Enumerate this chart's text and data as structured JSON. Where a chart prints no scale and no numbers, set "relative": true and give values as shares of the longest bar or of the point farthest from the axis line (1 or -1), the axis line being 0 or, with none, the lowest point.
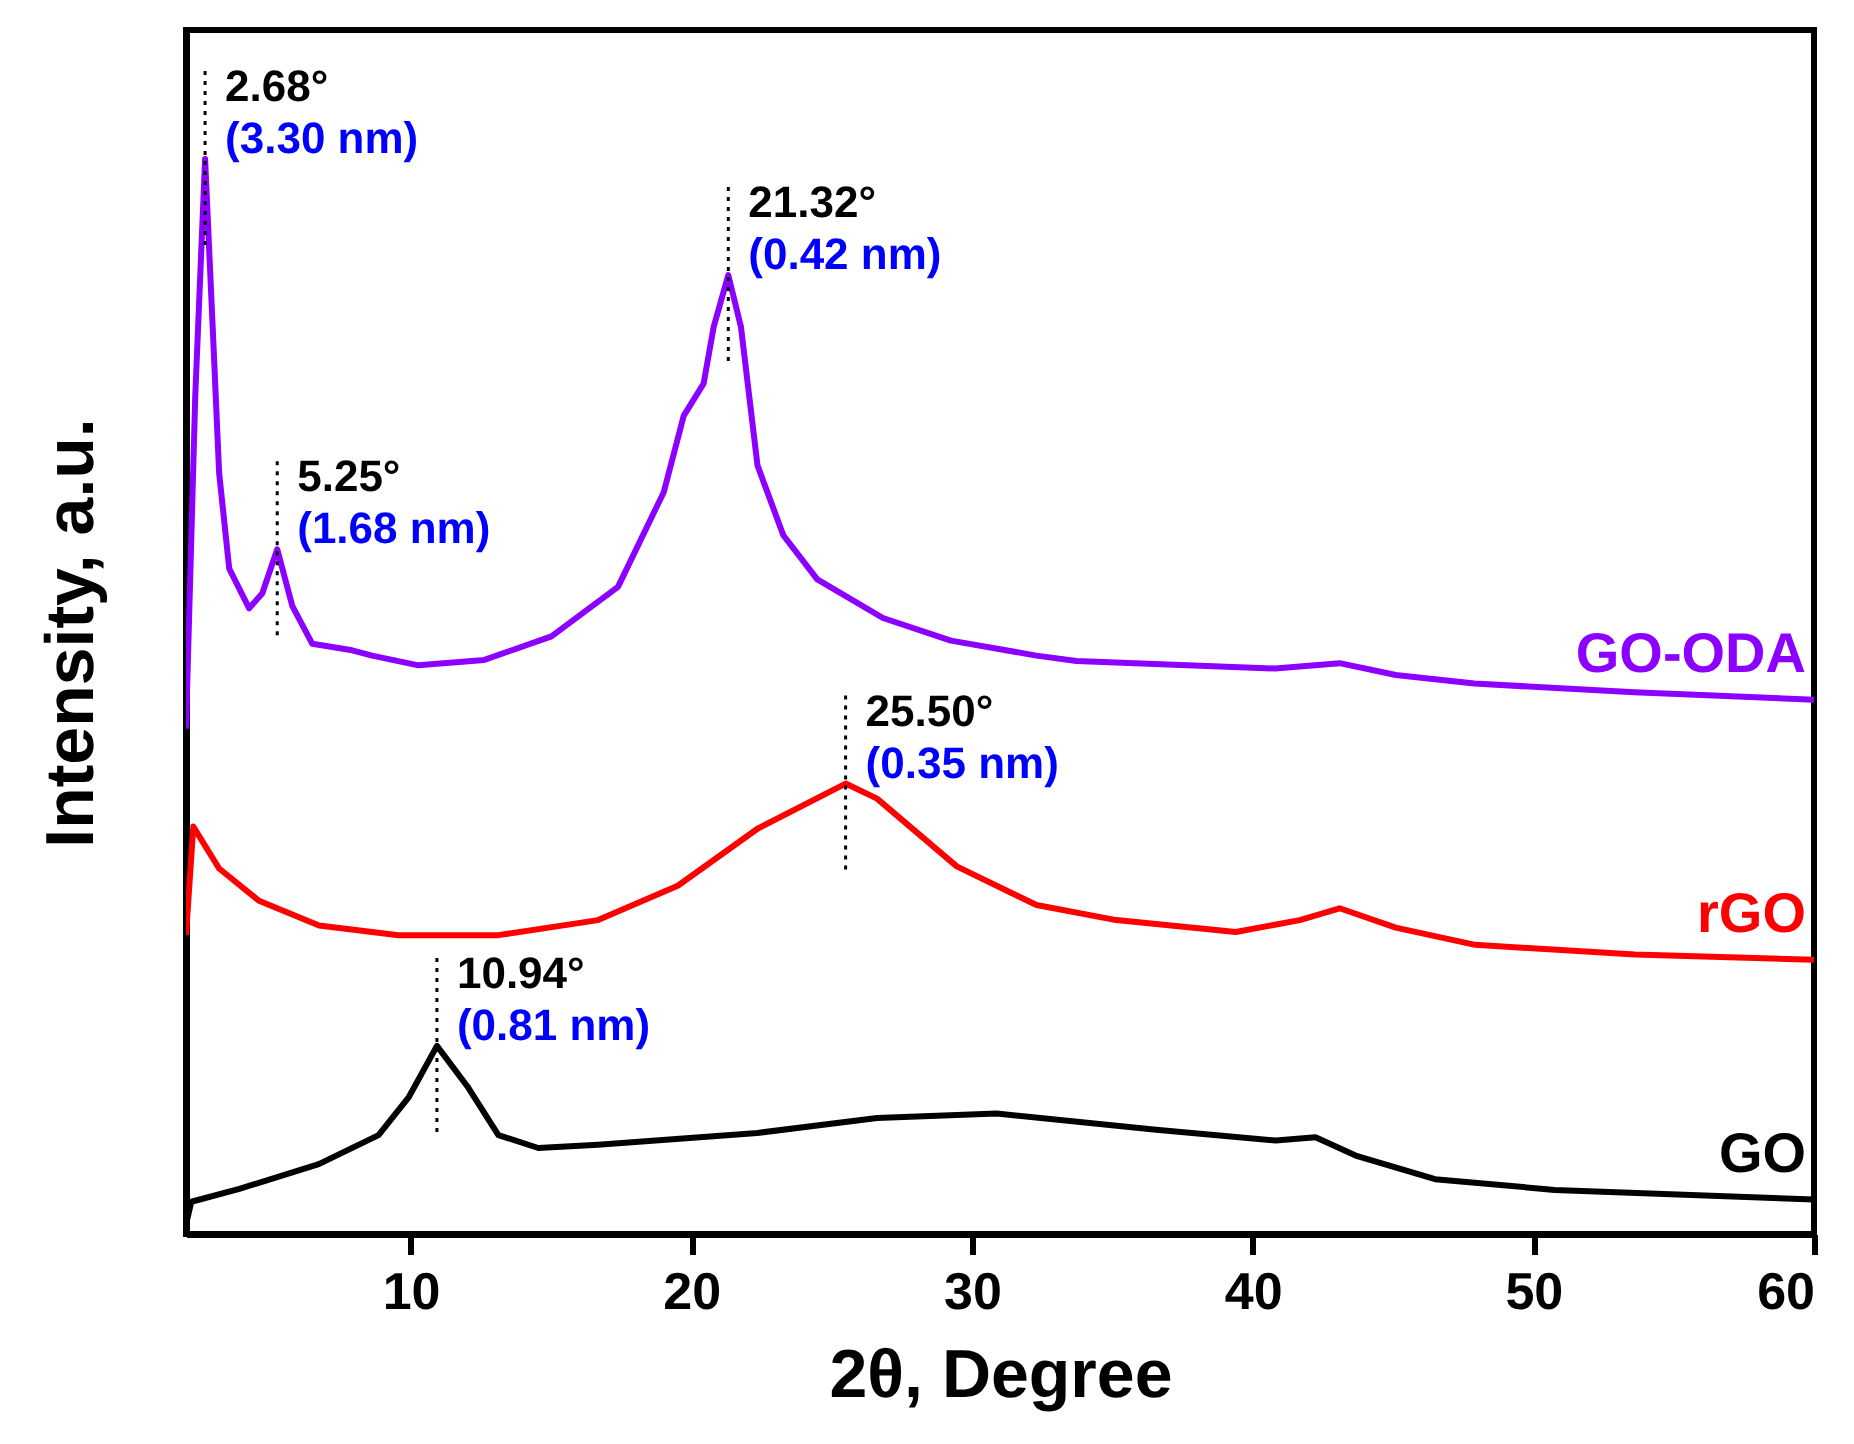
{
  "chart_data": {
    "type": "line",
    "relative": true,
    "xlabel": "2θ, Degree",
    "ylabel": "Intensity, a.u.",
    "xlim": [
      2,
      60
    ],
    "xticks": [
      10,
      20,
      30,
      40,
      50,
      60
    ],
    "grid": false,
    "marker": "none",
    "line_style": "solid",
    "series": [
      {
        "name": "GO-ODA",
        "color": "#8c00ff",
        "x": [
          2.0,
          2.33,
          2.68,
          2.95,
          3.18,
          3.54,
          4.25,
          4.72,
          5.25,
          5.79,
          6.5,
          7.92,
          8.63,
          10.28,
          12.63,
          15.02,
          17.39,
          19.02,
          19.73,
          20.44,
          20.8,
          21.32,
          21.77,
          22.36,
          23.28,
          24.49,
          26.83,
          29.25,
          32.3,
          33.72,
          40.8,
          43.1,
          45.1,
          47.9,
          53.6,
          60
        ],
        "values": [
          0.47,
          0.78,
          1.0,
          0.844,
          0.708,
          0.619,
          0.582,
          0.596,
          0.637,
          0.584,
          0.549,
          0.543,
          0.538,
          0.529,
          0.534,
          0.556,
          0.602,
          0.69,
          0.761,
          0.791,
          0.844,
          0.892,
          0.844,
          0.715,
          0.65,
          0.609,
          0.573,
          0.552,
          0.538,
          0.533,
          0.526,
          0.531,
          0.52,
          0.512,
          0.504,
          0.497
        ]
      },
      {
        "name": "rGO",
        "color": "#ff0000",
        "x": [
          2.0,
          2.26,
          3.18,
          4.6,
          6.74,
          9.57,
          13.13,
          16.68,
          19.52,
          22.36,
          25.5,
          26.62,
          29.46,
          32.3,
          35.14,
          39.4,
          41.68,
          43.1,
          45.1,
          47.93,
          53.62,
          60
        ],
        "values": [
          0.278,
          0.379,
          0.34,
          0.31,
          0.287,
          0.278,
          0.278,
          0.292,
          0.324,
          0.377,
          0.419,
          0.405,
          0.342,
          0.306,
          0.292,
          0.281,
          0.292,
          0.303,
          0.285,
          0.269,
          0.26,
          0.255
        ]
      },
      {
        "name": "GO",
        "color": "#000000",
        "x": [
          2.0,
          2.19,
          3.9,
          6.73,
          8.86,
          9.93,
          10.94,
          12.06,
          13.13,
          14.55,
          16.68,
          22.36,
          26.62,
          30.88,
          36.56,
          40.82,
          42.24,
          43.67,
          46.5,
          50.76,
          60
        ],
        "values": [
          0.009,
          0.03,
          0.042,
          0.065,
          0.092,
          0.127,
          0.175,
          0.136,
          0.092,
          0.08,
          0.083,
          0.094,
          0.108,
          0.112,
          0.097,
          0.087,
          0.09,
          0.073,
          0.051,
          0.041,
          0.032
        ]
      }
    ],
    "annotations": [
      {
        "text": "2.68°",
        "x": 2.68,
        "y": 1.0
      },
      {
        "text": "(3.30 nm)",
        "x": 2.68,
        "y": 1.0
      },
      {
        "text": "5.25°",
        "x": 5.25,
        "y": 0.637
      },
      {
        "text": "(1.68 nm)",
        "x": 5.25,
        "y": 0.637
      },
      {
        "text": "21.32°",
        "x": 21.32,
        "y": 0.892
      },
      {
        "text": "(0.42 nm)",
        "x": 21.32,
        "y": 0.892
      },
      {
        "text": "25.50°",
        "x": 25.5,
        "y": 0.419
      },
      {
        "text": "(0.35 nm)",
        "x": 25.5,
        "y": 0.419
      },
      {
        "text": "10.94°",
        "x": 10.94,
        "y": 0.175
      },
      {
        "text": "(0.81 nm)",
        "x": 10.94,
        "y": 0.175
      }
    ]
  }
}
